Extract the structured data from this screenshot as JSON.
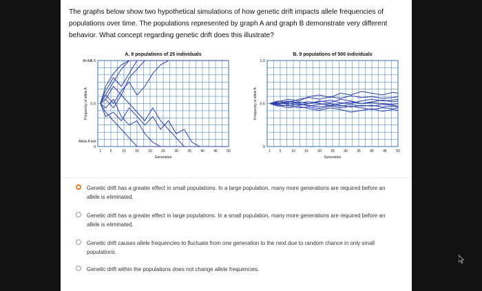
{
  "question": "The graphs below show two hypothetical simulations of how genetic drift impacts allele frequencies of populations over time. The populations represented by graph A and graph B demonstrate very different behavior. What concept regarding genetic drift does this illustrate?",
  "chart_data": [
    {
      "type": "line",
      "title": "A. 9 populations of 25 individuals",
      "xlabel": "Generation",
      "ylabel": "Frequency of allele A",
      "top_annotation": "All AA",
      "bottom_annotation": "Allele A lost",
      "xlim": [
        0,
        50
      ],
      "ylim": [
        0,
        1
      ],
      "xticks": [
        "1",
        "5",
        "10",
        "15",
        "20",
        "25",
        "30",
        "35",
        "40",
        "45",
        "50"
      ],
      "yticks": [
        "0",
        "0.5",
        "1.0"
      ],
      "grid": true,
      "line_color": "#2a3fb0",
      "x": [
        1,
        3,
        6,
        9,
        12,
        15,
        18,
        21,
        24,
        27,
        30,
        33,
        36,
        39,
        42,
        45,
        48,
        50
      ],
      "series": [
        {
          "values": [
            0.5,
            0.6,
            0.75,
            0.9,
            1,
            1,
            1,
            1,
            1,
            1,
            1,
            1,
            1,
            1,
            1,
            1,
            1,
            1
          ]
        },
        {
          "values": [
            0.5,
            0.4,
            0.3,
            0.2,
            0.1,
            0,
            0,
            0,
            0,
            0,
            0,
            0,
            0,
            0,
            0,
            0,
            0,
            0
          ]
        },
        {
          "values": [
            0.5,
            0.65,
            0.8,
            0.7,
            0.85,
            1,
            1,
            1,
            1,
            1,
            1,
            1,
            1,
            1,
            1,
            1,
            1,
            1
          ]
        },
        {
          "values": [
            0.5,
            0.55,
            0.45,
            0.6,
            0.5,
            0.4,
            0.3,
            0.45,
            0.3,
            0.2,
            0.1,
            0,
            0,
            0,
            0,
            0,
            0,
            0
          ]
        },
        {
          "values": [
            0.5,
            0.7,
            0.85,
            0.95,
            1,
            1,
            1,
            1,
            1,
            1,
            1,
            1,
            1,
            1,
            1,
            1,
            1,
            1
          ]
        },
        {
          "values": [
            0.5,
            0.45,
            0.55,
            0.35,
            0.25,
            0.3,
            0.15,
            0.05,
            0,
            0,
            0,
            0,
            0,
            0,
            0,
            0,
            0,
            0
          ]
        },
        {
          "values": [
            0.5,
            0.6,
            0.5,
            0.65,
            0.75,
            0.6,
            0.7,
            0.85,
            0.95,
            1,
            1,
            1,
            1,
            1,
            1,
            1,
            1,
            1
          ]
        },
        {
          "values": [
            0.5,
            0.35,
            0.4,
            0.3,
            0.45,
            0.35,
            0.25,
            0.35,
            0.2,
            0.3,
            0.15,
            0.2,
            0.05,
            0,
            0,
            0,
            0,
            0
          ]
        },
        {
          "values": [
            0.5,
            0.55,
            0.7,
            0.6,
            0.8,
            0.9,
            1,
            1,
            1,
            1,
            1,
            1,
            1,
            1,
            1,
            1,
            1,
            1
          ]
        }
      ]
    },
    {
      "type": "line",
      "title": "B. 9 populations of 500 individuals",
      "xlabel": "Generation",
      "ylabel": "Frequency of allele A",
      "xlim": [
        0,
        50
      ],
      "ylim": [
        0,
        1
      ],
      "xticks": [
        "1",
        "5",
        "10",
        "15",
        "20",
        "25",
        "30",
        "35",
        "40",
        "45",
        "50"
      ],
      "yticks": [
        "0",
        "0.5",
        "1.0"
      ],
      "grid": true,
      "line_color": "#2a3fb0",
      "x": [
        1,
        4,
        8,
        12,
        16,
        20,
        24,
        28,
        32,
        36,
        40,
        44,
        48,
        50
      ],
      "series": [
        {
          "values": [
            0.5,
            0.52,
            0.55,
            0.53,
            0.58,
            0.6,
            0.57,
            0.62,
            0.6,
            0.64,
            0.62,
            0.6,
            0.63,
            0.62
          ]
        },
        {
          "values": [
            0.5,
            0.48,
            0.45,
            0.47,
            0.44,
            0.42,
            0.45,
            0.43,
            0.4,
            0.42,
            0.44,
            0.41,
            0.43,
            0.42
          ]
        },
        {
          "values": [
            0.5,
            0.51,
            0.49,
            0.52,
            0.5,
            0.53,
            0.51,
            0.55,
            0.53,
            0.5,
            0.52,
            0.54,
            0.52,
            0.53
          ]
        },
        {
          "values": [
            0.5,
            0.49,
            0.52,
            0.5,
            0.47,
            0.49,
            0.5,
            0.48,
            0.46,
            0.48,
            0.47,
            0.49,
            0.48,
            0.47
          ]
        },
        {
          "values": [
            0.5,
            0.53,
            0.51,
            0.55,
            0.57,
            0.55,
            0.58,
            0.56,
            0.59,
            0.57,
            0.58,
            0.56,
            0.57,
            0.58
          ]
        },
        {
          "values": [
            0.5,
            0.47,
            0.48,
            0.45,
            0.46,
            0.44,
            0.47,
            0.45,
            0.47,
            0.45,
            0.43,
            0.45,
            0.44,
            0.45
          ]
        },
        {
          "values": [
            0.5,
            0.5,
            0.53,
            0.51,
            0.52,
            0.5,
            0.48,
            0.5,
            0.52,
            0.5,
            0.51,
            0.5,
            0.49,
            0.5
          ]
        },
        {
          "values": [
            0.5,
            0.51,
            0.5,
            0.48,
            0.5,
            0.52,
            0.54,
            0.51,
            0.5,
            0.53,
            0.55,
            0.53,
            0.54,
            0.55
          ]
        },
        {
          "values": [
            0.5,
            0.49,
            0.47,
            0.49,
            0.48,
            0.46,
            0.48,
            0.47,
            0.49,
            0.47,
            0.48,
            0.46,
            0.47,
            0.46
          ]
        }
      ]
    }
  ],
  "options": [
    {
      "label": "Genetic drift has a greater effect in small populations. In a large population, many more generations are required before an allele is eliminated.",
      "selected": true
    },
    {
      "label": "Genetic drift has a greater effect in large populations. In a small population, many more generations are required before an allele is eliminated.",
      "selected": false
    },
    {
      "label": "Genetic drift causes allele frequencies to fluctuate from one generation to the next due to random chance in only small populations.",
      "selected": false
    },
    {
      "label": "Genetic drift within the populations does not change allele frequencies.",
      "selected": false
    }
  ],
  "colors": {
    "selected_radio": "#e07a1f",
    "line": "#2a3fb0",
    "grid": "#2f6fb0"
  }
}
